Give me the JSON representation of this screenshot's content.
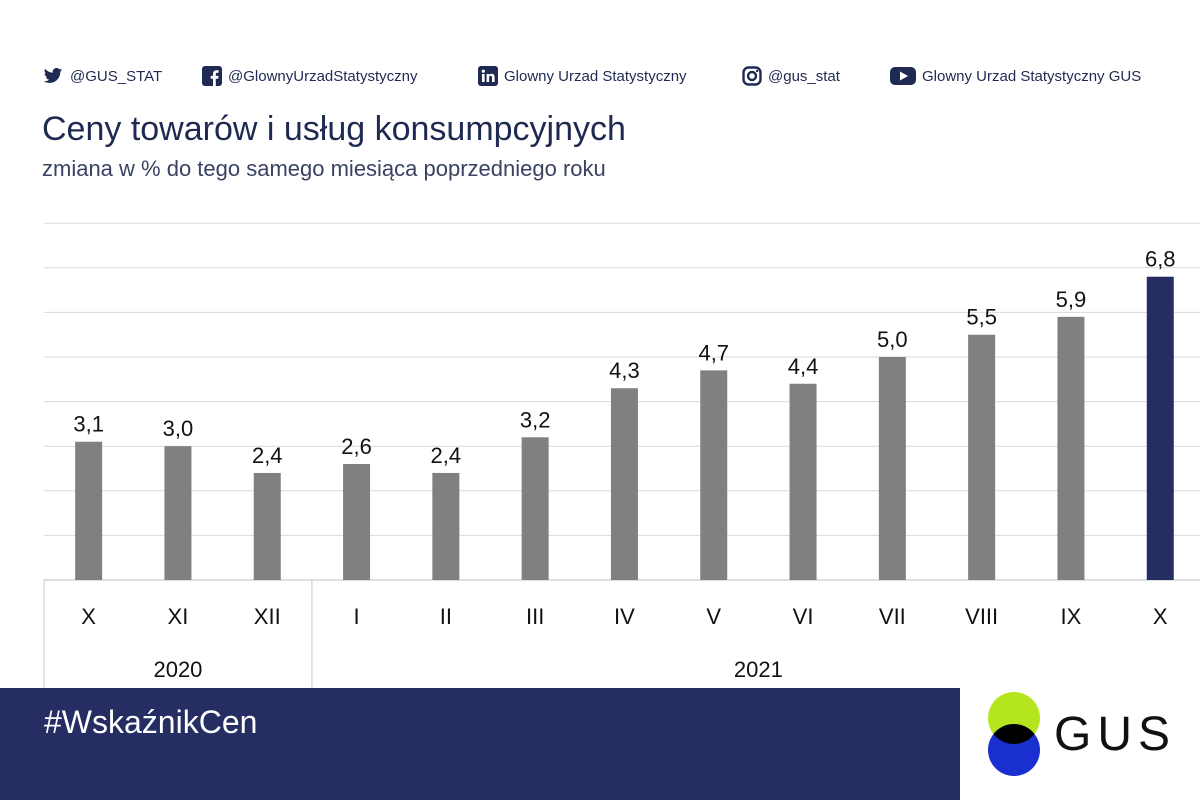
{
  "social": [
    {
      "icon": "twitter-icon",
      "label": "@GUS_STAT"
    },
    {
      "icon": "facebook-icon",
      "label": "@GlownyUrzadStatystyczny"
    },
    {
      "icon": "linkedin-icon",
      "label": "Glowny Urzad Statystyczny"
    },
    {
      "icon": "instagram-icon",
      "label": "@gus_stat"
    },
    {
      "icon": "youtube-icon",
      "label": "Glowny Urzad Statystyczny GUS"
    }
  ],
  "hashtag": "#WskaźnikCen",
  "logo": {
    "text": "GUS",
    "colors": [
      "#b5e51d",
      "#1a2fd0",
      "#000000"
    ]
  },
  "colors": {
    "bar": "#808080",
    "highlight": "#252d62",
    "navy": "#252d62",
    "grid": "#d9d9d9"
  },
  "chart_data": {
    "type": "bar",
    "title": "Ceny towarów i usług konsumpcyjnych",
    "subtitle": "zmiana w % do tego samego miesiąca poprzedniego roku",
    "categories": [
      "X",
      "XI",
      "XII",
      "I",
      "II",
      "III",
      "IV",
      "V",
      "VI",
      "VII",
      "VIII",
      "IX",
      "X"
    ],
    "values": [
      3.1,
      3.0,
      2.4,
      2.6,
      2.4,
      3.2,
      4.3,
      4.7,
      4.4,
      5.0,
      5.5,
      5.9,
      6.8
    ],
    "data_labels": [
      "3,1",
      "3,0",
      "2,4",
      "2,6",
      "2,4",
      "3,2",
      "4,3",
      "4,7",
      "4,4",
      "5,0",
      "5,5",
      "5,9",
      "6,8"
    ],
    "highlight_index": 12,
    "groups": [
      {
        "label": "2020",
        "start": 0,
        "end": 2
      },
      {
        "label": "2021",
        "start": 3,
        "end": 12
      }
    ],
    "ylim": [
      0,
      8
    ],
    "grid": true,
    "xlabel": "",
    "ylabel": ""
  }
}
